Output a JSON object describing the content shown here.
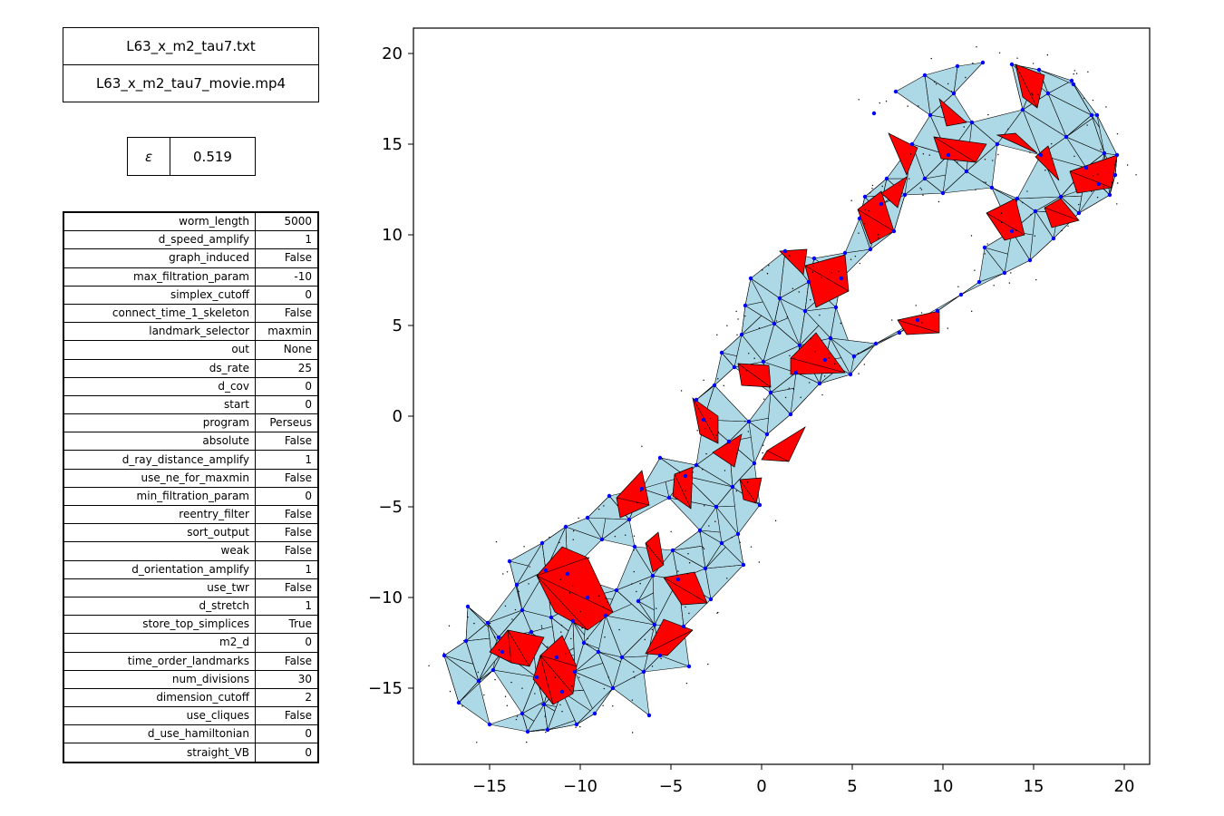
{
  "files": {
    "data_file": "L63_x_m2_tau7.txt",
    "movie_file": "L63_x_m2_tau7_movie.mp4"
  },
  "epsilon": {
    "symbol": "ε",
    "value": "0.519"
  },
  "parameters": [
    {
      "name": "worm_length",
      "value": "5000"
    },
    {
      "name": "d_speed_amplify",
      "value": "1"
    },
    {
      "name": "graph_induced",
      "value": "False"
    },
    {
      "name": "max_filtration_param",
      "value": "-10"
    },
    {
      "name": "simplex_cutoff",
      "value": "0"
    },
    {
      "name": "connect_time_1_skeleton",
      "value": "False"
    },
    {
      "name": "landmark_selector",
      "value": "maxmin"
    },
    {
      "name": "out",
      "value": "None"
    },
    {
      "name": "ds_rate",
      "value": "25"
    },
    {
      "name": "d_cov",
      "value": "0"
    },
    {
      "name": "start",
      "value": "0"
    },
    {
      "name": "program",
      "value": "Perseus"
    },
    {
      "name": "absolute",
      "value": "False"
    },
    {
      "name": "d_ray_distance_amplify",
      "value": "1"
    },
    {
      "name": "use_ne_for_maxmin",
      "value": "False"
    },
    {
      "name": "min_filtration_param",
      "value": "0"
    },
    {
      "name": "reentry_filter",
      "value": "False"
    },
    {
      "name": "sort_output",
      "value": "False"
    },
    {
      "name": "weak",
      "value": "False"
    },
    {
      "name": "d_orientation_amplify",
      "value": "1"
    },
    {
      "name": "use_twr",
      "value": "False"
    },
    {
      "name": "d_stretch",
      "value": "1"
    },
    {
      "name": "store_top_simplices",
      "value": "True"
    },
    {
      "name": "m2_d",
      "value": "0"
    },
    {
      "name": "time_order_landmarks",
      "value": "False"
    },
    {
      "name": "num_divisions",
      "value": "30"
    },
    {
      "name": "dimension_cutoff",
      "value": "2"
    },
    {
      "name": "use_cliques",
      "value": "False"
    },
    {
      "name": "d_use_hamiltonian",
      "value": "0"
    },
    {
      "name": "straight_VB",
      "value": "0"
    }
  ],
  "chart_data": {
    "type": "scatter",
    "description": "Delay-embedding point cloud with witness complex triangles (light blue) and highlighted triangles (red); landmark points in blue",
    "xlim": [
      -19.2,
      21.4
    ],
    "ylim": [
      -19.2,
      21.4
    ],
    "xticks": [
      -15,
      -10,
      -5,
      0,
      5,
      10,
      15,
      20
    ],
    "yticks": [
      -15,
      -10,
      -5,
      0,
      5,
      10,
      15,
      20
    ],
    "xtick_labels": [
      "−15",
      "−10",
      "−5",
      "0",
      "5",
      "10",
      "15",
      "20"
    ],
    "ytick_labels": [
      "−15",
      "−10",
      "−5",
      "0",
      "5",
      "10",
      "15",
      "20"
    ],
    "colors": {
      "triangle_fill": "#add8e6",
      "highlight_fill": "#ff0000",
      "landmark": "#0000ff",
      "edge": "#000000",
      "cloud": "#000000"
    },
    "landmarks": [
      [
        -17.5,
        -13.2
      ],
      [
        -16.3,
        -12.4
      ],
      [
        -16.7,
        -15.8
      ],
      [
        -16.2,
        -10.5
      ],
      [
        -15.1,
        -11.4
      ],
      [
        -15.0,
        -17.0
      ],
      [
        -14.8,
        -14.0
      ],
      [
        -14.3,
        -13.0
      ],
      [
        -13.9,
        -8.0
      ],
      [
        -13.5,
        -9.3
      ],
      [
        -13.2,
        -16.4
      ],
      [
        -12.9,
        -17.4
      ],
      [
        -12.7,
        -11.9
      ],
      [
        -12.4,
        -14.4
      ],
      [
        -12.1,
        -7.0
      ],
      [
        -12.0,
        -15.9
      ],
      [
        -11.8,
        -17.3
      ],
      [
        -11.6,
        -11.1
      ],
      [
        -11.3,
        -13.3
      ],
      [
        -11.0,
        -15.2
      ],
      [
        -10.7,
        -8.7
      ],
      [
        -10.4,
        -11.3
      ],
      [
        -10.3,
        -14.1
      ],
      [
        -10.2,
        -17.0
      ],
      [
        -9.8,
        -12.5
      ],
      [
        -9.6,
        -10.0
      ],
      [
        -9.2,
        -16.4
      ],
      [
        -9.0,
        -13.0
      ],
      [
        -8.8,
        -6.8
      ],
      [
        -8.6,
        -11.0
      ],
      [
        -8.2,
        -15.0
      ],
      [
        -8.0,
        -9.6
      ],
      [
        -7.7,
        -13.3
      ],
      [
        -7.3,
        -5.7
      ],
      [
        -7.0,
        -7.2
      ],
      [
        -6.8,
        -10.2
      ],
      [
        -6.5,
        -14.1
      ],
      [
        -6.2,
        -16.5
      ],
      [
        -6.0,
        -8.8
      ],
      [
        -5.9,
        -11.5
      ],
      [
        -5.6,
        -13.2
      ],
      [
        -5.1,
        -4.5
      ],
      [
        -4.9,
        -7.4
      ],
      [
        -4.6,
        -9.0
      ],
      [
        -4.3,
        -11.6
      ],
      [
        -4.0,
        -13.8
      ],
      [
        -3.6,
        -2.7
      ],
      [
        -3.4,
        -6.3
      ],
      [
        -3.1,
        -8.4
      ],
      [
        -2.8,
        -10.1
      ],
      [
        -2.5,
        -5.0
      ],
      [
        -2.2,
        -7.0
      ],
      [
        -1.8,
        -1.4
      ],
      [
        -1.6,
        -3.9
      ],
      [
        -1.3,
        -6.5
      ],
      [
        -1.0,
        -8.2
      ],
      [
        -0.7,
        -0.3
      ],
      [
        -0.4,
        -2.6
      ],
      [
        -0.1,
        -4.9
      ],
      [
        0.3,
        -1.0
      ],
      [
        -3.6,
        0.9
      ],
      [
        -3.2,
        -0.2
      ],
      [
        -2.6,
        1.7
      ],
      [
        -2.2,
        3.5
      ],
      [
        -1.5,
        2.7
      ],
      [
        -1.1,
        4.5
      ],
      [
        -0.9,
        6.1
      ],
      [
        -0.6,
        7.6
      ],
      [
        0.1,
        3.0
      ],
      [
        0.5,
        1.3
      ],
      [
        0.7,
        5.1
      ],
      [
        1.0,
        6.5
      ],
      [
        1.3,
        9.1
      ],
      [
        1.6,
        0.1
      ],
      [
        1.9,
        2.4
      ],
      [
        2.1,
        3.9
      ],
      [
        2.4,
        5.8
      ],
      [
        2.6,
        7.4
      ],
      [
        2.9,
        8.7
      ],
      [
        3.2,
        1.8
      ],
      [
        3.5,
        3.1
      ],
      [
        3.8,
        4.3
      ],
      [
        4.1,
        6.0
      ],
      [
        4.4,
        7.6
      ],
      [
        4.6,
        9.0
      ],
      [
        4.9,
        2.3
      ],
      [
        5.1,
        3.3
      ],
      [
        5.4,
        10.9
      ],
      [
        5.7,
        12.1
      ],
      [
        6.0,
        9.2
      ],
      [
        6.3,
        4.0
      ],
      [
        6.6,
        11.7
      ],
      [
        6.9,
        13.1
      ],
      [
        7.3,
        10.2
      ],
      [
        7.6,
        4.6
      ],
      [
        7.9,
        12.2
      ],
      [
        8.3,
        15.0
      ],
      [
        8.6,
        5.3
      ],
      [
        9.0,
        13.1
      ],
      [
        9.3,
        16.6
      ],
      [
        9.7,
        5.8
      ],
      [
        10.0,
        12.3
      ],
      [
        10.3,
        14.4
      ],
      [
        10.6,
        17.8
      ],
      [
        11.0,
        6.7
      ],
      [
        11.3,
        13.5
      ],
      [
        11.6,
        16.2
      ],
      [
        12.0,
        7.4
      ],
      [
        12.3,
        9.3
      ],
      [
        12.7,
        12.6
      ],
      [
        13.0,
        15.0
      ],
      [
        13.4,
        7.9
      ],
      [
        13.8,
        10.2
      ],
      [
        14.1,
        12.0
      ],
      [
        14.4,
        16.9
      ],
      [
        14.8,
        8.6
      ],
      [
        15.1,
        11.3
      ],
      [
        15.4,
        14.4
      ],
      [
        15.8,
        17.8
      ],
      [
        16.1,
        9.8
      ],
      [
        16.5,
        12.1
      ],
      [
        16.8,
        15.4
      ],
      [
        17.2,
        18.3
      ],
      [
        17.5,
        11.2
      ],
      [
        17.9,
        13.7
      ],
      [
        18.2,
        16.6
      ],
      [
        18.6,
        12.8
      ],
      [
        18.9,
        14.5
      ],
      [
        19.2,
        12.2
      ],
      [
        19.5,
        13.3
      ],
      [
        -4.2,
        -3.3
      ],
      [
        -5.6,
        -2.3
      ],
      [
        -6.6,
        -4.0
      ],
      [
        -8.4,
        -4.4
      ],
      [
        -9.6,
        -5.6
      ],
      [
        -10.8,
        -6.1
      ],
      [
        -11.9,
        -8.5
      ],
      [
        -13.2,
        -10.7
      ],
      [
        -14.5,
        -12.2
      ],
      [
        -15.6,
        -14.6
      ],
      [
        12.2,
        19.5
      ],
      [
        13.8,
        19.4
      ],
      [
        15.3,
        19.1
      ],
      [
        17.1,
        18.5
      ],
      [
        18.5,
        16.6
      ],
      [
        19.6,
        14.4
      ],
      [
        10.8,
        19.3
      ],
      [
        9.0,
        18.8
      ],
      [
        7.4,
        17.9
      ],
      [
        6.2,
        16.7
      ]
    ],
    "highlight_regions": [
      [
        [
          -14.0,
          -11.8
        ],
        [
          -12.0,
          -12.2
        ],
        [
          -12.8,
          -13.8
        ],
        [
          -13.8,
          -13.6
        ],
        [
          -15.0,
          -13.0
        ]
      ],
      [
        [
          -12.2,
          -13.2
        ],
        [
          -11.0,
          -12.1
        ],
        [
          -10.2,
          -13.8
        ],
        [
          -10.4,
          -15.3
        ],
        [
          -11.5,
          -15.9
        ],
        [
          -12.6,
          -14.5
        ]
      ],
      [
        [
          -12.4,
          -8.8
        ],
        [
          -11.0,
          -7.2
        ],
        [
          -9.6,
          -7.8
        ],
        [
          -8.2,
          -10.8
        ],
        [
          -9.6,
          -11.8
        ],
        [
          -11.4,
          -10.8
        ]
      ],
      [
        [
          -8.0,
          -4.5
        ],
        [
          -6.6,
          -3.0
        ],
        [
          -6.2,
          -4.9
        ],
        [
          -7.8,
          -5.6
        ]
      ],
      [
        [
          -4.8,
          -3.2
        ],
        [
          -3.8,
          -2.8
        ],
        [
          -3.9,
          -5.1
        ],
        [
          -4.9,
          -4.4
        ]
      ],
      [
        [
          -6.4,
          -7.0
        ],
        [
          -5.7,
          -6.4
        ],
        [
          -5.4,
          -8.2
        ],
        [
          -6.0,
          -8.6
        ]
      ],
      [
        [
          -5.4,
          -8.9
        ],
        [
          -3.7,
          -8.6
        ],
        [
          -3.0,
          -10.3
        ],
        [
          -4.4,
          -10.4
        ]
      ],
      [
        [
          -6.4,
          -13.1
        ],
        [
          -5.4,
          -11.2
        ],
        [
          -3.8,
          -11.8
        ],
        [
          -5.2,
          -13.2
        ]
      ],
      [
        [
          -3.8,
          1.0
        ],
        [
          -2.4,
          0.0
        ],
        [
          -2.4,
          -1.5
        ],
        [
          -3.4,
          -1.0
        ]
      ],
      [
        [
          -2.7,
          -2.0
        ],
        [
          -1.1,
          -1.0
        ],
        [
          -1.5,
          -2.8
        ]
      ],
      [
        [
          -1.2,
          -3.5
        ],
        [
          0.0,
          -3.4
        ],
        [
          -0.3,
          -4.8
        ],
        [
          -1.0,
          -4.6
        ]
      ],
      [
        [
          0.3,
          -1.9
        ],
        [
          2.4,
          -0.6
        ],
        [
          1.5,
          -2.5
        ],
        [
          0.0,
          -2.4
        ]
      ],
      [
        [
          -1.3,
          2.9
        ],
        [
          0.4,
          2.8
        ],
        [
          0.5,
          1.6
        ],
        [
          -1.1,
          1.7
        ]
      ],
      [
        [
          1.6,
          3.2
        ],
        [
          3.0,
          4.6
        ],
        [
          4.6,
          2.4
        ],
        [
          1.6,
          2.3
        ]
      ],
      [
        [
          1.0,
          9.1
        ],
        [
          2.5,
          9.2
        ],
        [
          2.3,
          7.8
        ]
      ],
      [
        [
          2.4,
          8.3
        ],
        [
          4.6,
          8.9
        ],
        [
          4.8,
          6.9
        ],
        [
          3.0,
          6.0
        ]
      ],
      [
        [
          5.3,
          11.4
        ],
        [
          6.6,
          12.4
        ],
        [
          7.3,
          10.2
        ],
        [
          6.0,
          9.5
        ]
      ],
      [
        [
          6.6,
          12.3
        ],
        [
          8.0,
          13.2
        ],
        [
          7.5,
          11.5
        ]
      ],
      [
        [
          7.0,
          15.6
        ],
        [
          8.0,
          13.3
        ],
        [
          8.6,
          14.8
        ]
      ],
      [
        [
          9.8,
          17.5
        ],
        [
          11.3,
          16.2
        ],
        [
          10.2,
          16.0
        ]
      ],
      [
        [
          9.5,
          15.4
        ],
        [
          12.4,
          15.0
        ],
        [
          11.8,
          14.0
        ],
        [
          9.9,
          14.2
        ]
      ],
      [
        [
          13.0,
          15.5
        ],
        [
          15.2,
          14.5
        ],
        [
          14.0,
          15.6
        ]
      ],
      [
        [
          14.0,
          19.4
        ],
        [
          15.6,
          18.8
        ],
        [
          15.2,
          17.0
        ],
        [
          14.4,
          17.6
        ]
      ],
      [
        [
          12.4,
          11.2
        ],
        [
          14.0,
          12.0
        ],
        [
          14.5,
          10.0
        ],
        [
          13.4,
          9.7
        ]
      ],
      [
        [
          15.6,
          11.5
        ],
        [
          16.5,
          12.0
        ],
        [
          17.5,
          10.8
        ],
        [
          16.0,
          10.4
        ]
      ],
      [
        [
          17.0,
          13.5
        ],
        [
          19.6,
          14.4
        ],
        [
          19.3,
          12.6
        ],
        [
          17.4,
          12.3
        ]
      ],
      [
        [
          7.5,
          5.3
        ],
        [
          9.8,
          5.8
        ],
        [
          9.8,
          4.6
        ],
        [
          8.0,
          4.5
        ]
      ],
      [
        [
          15.1,
          14.3
        ],
        [
          16.4,
          13.0
        ],
        [
          15.8,
          14.9
        ]
      ]
    ]
  }
}
